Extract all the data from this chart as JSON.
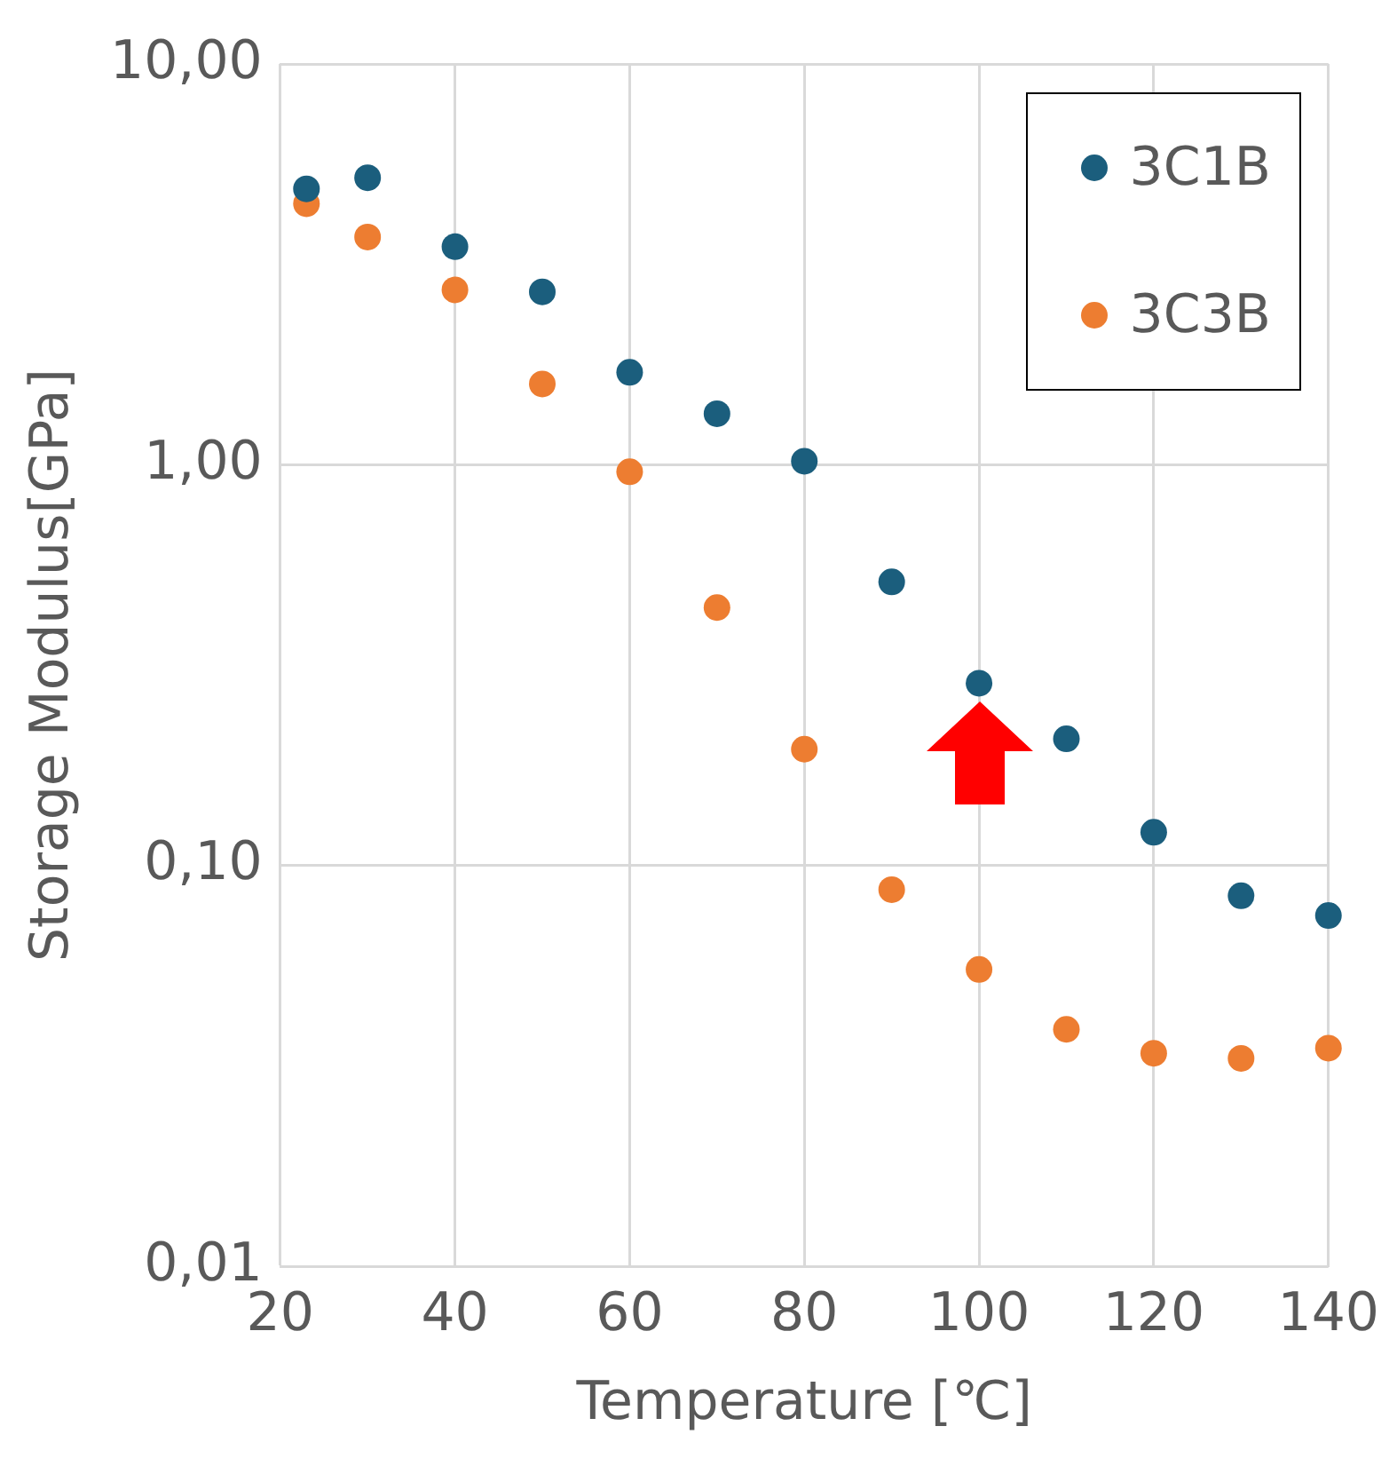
{
  "chart_data": {
    "type": "scatter",
    "xlabel": "Temperature [℃]",
    "ylabel": "Storage Modulus[GPa]",
    "xlim": [
      20,
      140
    ],
    "xticks": [
      20,
      40,
      60,
      80,
      100,
      120,
      140
    ],
    "ylim": [
      0.01,
      10
    ],
    "yticks": [
      {
        "value": 0.01,
        "label": "0,01"
      },
      {
        "value": 0.1,
        "label": "0,10"
      },
      {
        "value": 1,
        "label": "1,00"
      },
      {
        "value": 10,
        "label": "10,00"
      }
    ],
    "log": "y",
    "grid": true,
    "legend": "top right",
    "marker": "circle",
    "series": [
      {
        "name": "3C1B",
        "color": "#1b5e7d",
        "x": [
          23,
          30,
          40,
          50,
          60,
          70,
          80,
          90,
          100,
          110,
          120,
          130,
          140
        ],
        "values": [
          4.88,
          5.2,
          3.5,
          2.7,
          1.7,
          1.34,
          1.02,
          0.51,
          0.285,
          0.207,
          0.121,
          0.084,
          0.075
        ]
      },
      {
        "name": "3C3B",
        "color": "#ed7d31",
        "x": [
          23,
          30,
          40,
          50,
          60,
          70,
          80,
          90,
          100,
          110,
          120,
          130,
          140
        ],
        "values": [
          4.48,
          3.7,
          2.73,
          1.59,
          0.96,
          0.44,
          0.195,
          0.087,
          0.055,
          0.039,
          0.034,
          0.033,
          0.035
        ]
      }
    ]
  }
}
